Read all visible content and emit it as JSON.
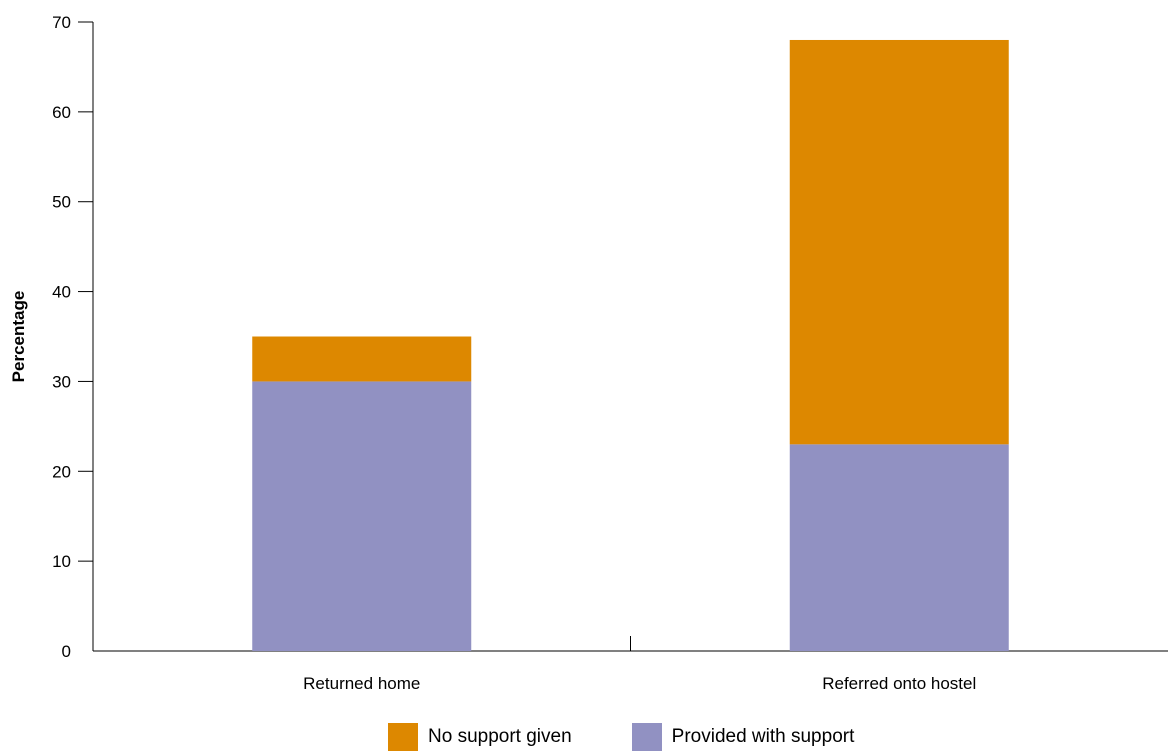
{
  "chart_data": {
    "type": "bar",
    "stacked": true,
    "categories": [
      "Returned home",
      "Referred onto hostel"
    ],
    "series": [
      {
        "name": "Provided with support",
        "values": [
          30,
          23
        ],
        "color": "#9191c2"
      },
      {
        "name": "No support given",
        "values": [
          5,
          45
        ],
        "color": "#dd8800"
      }
    ],
    "ylabel": "Percentage",
    "xlabel": "",
    "ylim": [
      0,
      70
    ],
    "yticks": [
      0,
      10,
      20,
      30,
      40,
      50,
      60,
      70
    ],
    "grid": false,
    "legend_position": "bottom",
    "legend_order": [
      "No support given",
      "Provided with support"
    ]
  }
}
